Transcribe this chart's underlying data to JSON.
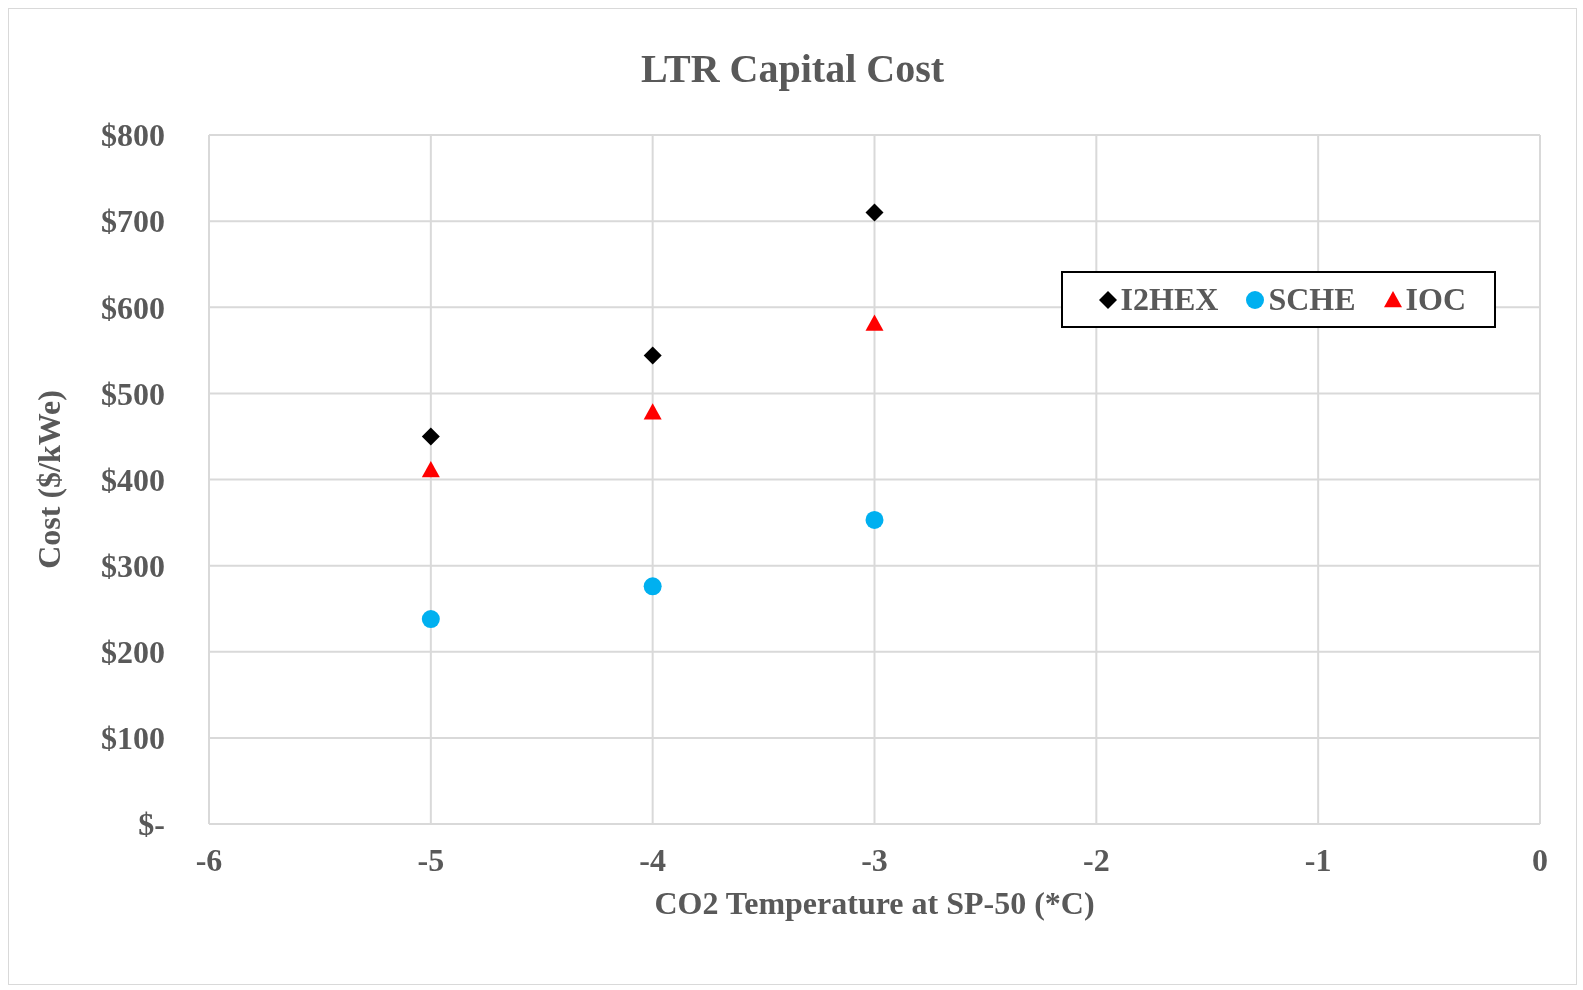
{
  "chart_data": {
    "type": "scatter",
    "title": "LTR Capital Cost",
    "xlabel": "CO2 Temperature at SP-50 (*C)",
    "ylabel": "Cost ($/kWe)",
    "x": [
      -5,
      -4,
      -3
    ],
    "series": [
      {
        "name": "I2HEX",
        "color": "#000000",
        "marker": "diamond",
        "values": [
          450,
          544,
          710
        ]
      },
      {
        "name": "SCHE",
        "color": "#00b0f0",
        "marker": "circle",
        "values": [
          238,
          276,
          353
        ]
      },
      {
        "name": "IOC",
        "color": "#ff0000",
        "marker": "triangle",
        "values": [
          411,
          478,
          581
        ]
      }
    ],
    "xlim": [
      -6,
      0
    ],
    "xticks": [
      -6,
      -5,
      -4,
      -3,
      -2,
      -1,
      0
    ],
    "ylim": [
      0,
      800
    ],
    "yticks": [
      {
        "value": 0,
        "label": "$-"
      },
      {
        "value": 100,
        "label": "$100"
      },
      {
        "value": 200,
        "label": "$200"
      },
      {
        "value": 300,
        "label": "$300"
      },
      {
        "value": 400,
        "label": "$400"
      },
      {
        "value": 500,
        "label": "$500"
      },
      {
        "value": 600,
        "label": "$600"
      },
      {
        "value": 700,
        "label": "$700"
      },
      {
        "value": 800,
        "label": "$800"
      }
    ],
    "grid": true,
    "legend": "top right"
  }
}
